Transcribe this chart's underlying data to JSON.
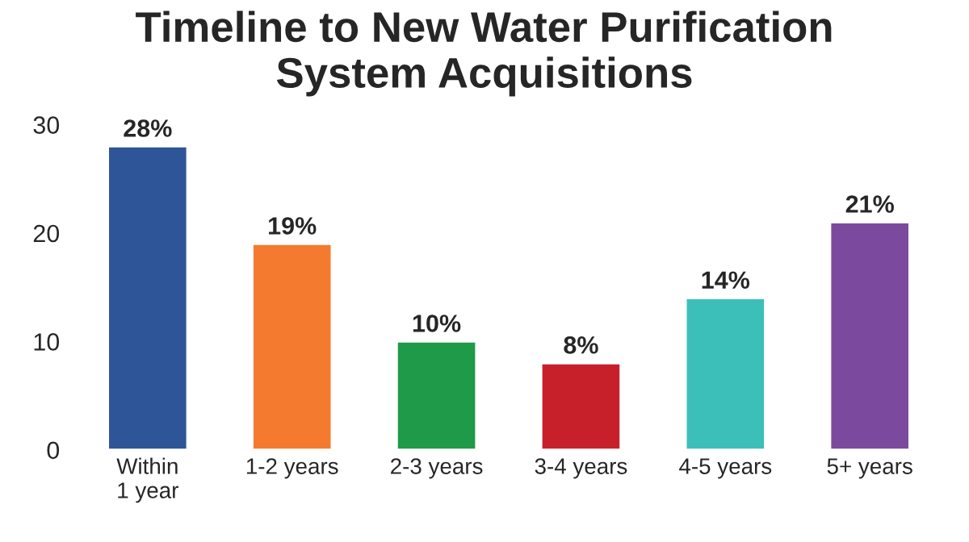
{
  "chart_data": {
    "type": "bar",
    "title": "Timeline to New Water Purification\nSystem Acquisitions",
    "categories": [
      "Within\n1 year",
      "1-2 years",
      "2-3 years",
      "3-4 years",
      "4-5 years",
      "5+ years"
    ],
    "values": [
      28,
      19,
      10,
      8,
      14,
      21
    ],
    "value_labels": [
      "28%",
      "19%",
      "10%",
      "8%",
      "14%",
      "21%"
    ],
    "colors": [
      "#2e5597",
      "#f47a30",
      "#1e9a48",
      "#c8202a",
      "#3cbfb8",
      "#7b4a9e"
    ],
    "ylim": [
      0,
      30
    ],
    "yticks": [
      0,
      10,
      20,
      30
    ],
    "grid": false,
    "legend": false
  }
}
